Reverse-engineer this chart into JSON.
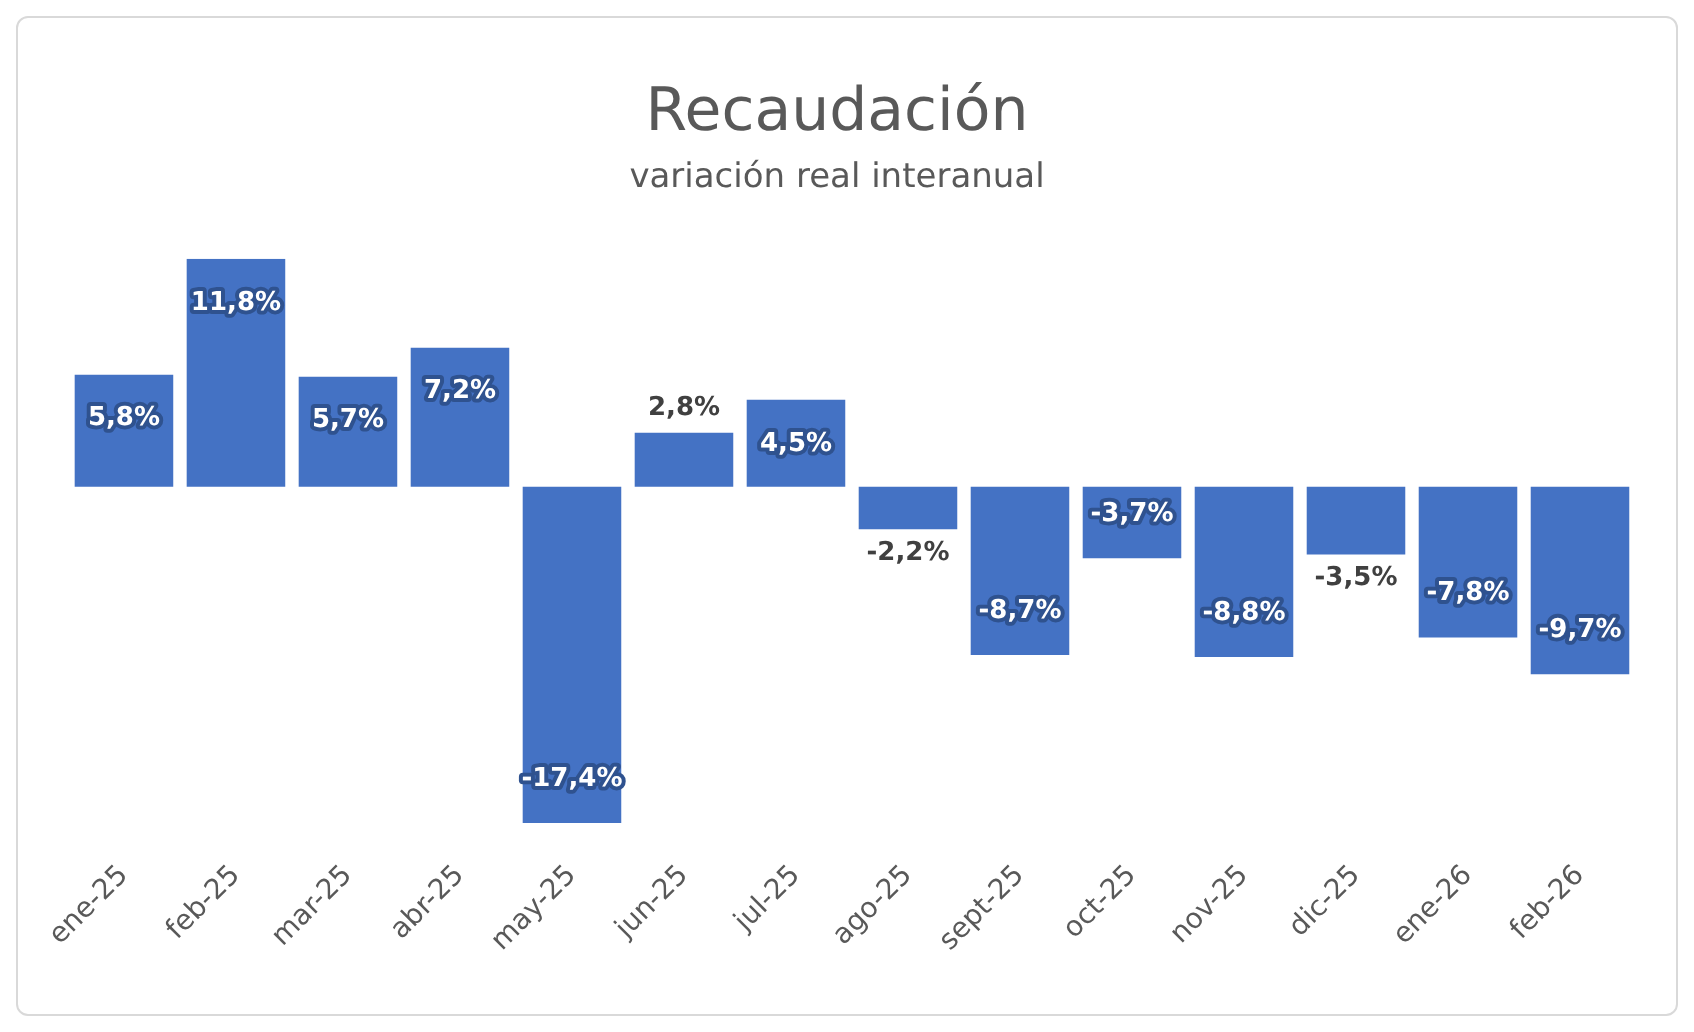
{
  "chart_data": {
    "type": "bar",
    "title": "Recaudación",
    "subtitle": "variación real interanual",
    "categories": [
      "ene-25",
      "feb-25",
      "mar-25",
      "abr-25",
      "may-25",
      "jun-25",
      "jul-25",
      "ago-25",
      "sept-25",
      "oct-25",
      "nov-25",
      "dic-25",
      "ene-26",
      "feb-26"
    ],
    "values": [
      5.8,
      11.8,
      5.7,
      7.2,
      -17.4,
      2.8,
      4.5,
      -2.2,
      -8.7,
      -3.7,
      -8.8,
      -3.5,
      -7.8,
      -9.7
    ],
    "value_labels": [
      "5,8%",
      "11,8%",
      "5,7%",
      "7,2%",
      "-17,4%",
      "2,8%",
      "4,5%",
      "-2,2%",
      "-8,7%",
      "-3,7%",
      "-8,8%",
      "-3,5%",
      "-7,8%",
      "-9,7%"
    ],
    "color": "#4472c4",
    "grid": false,
    "legend": false
  }
}
